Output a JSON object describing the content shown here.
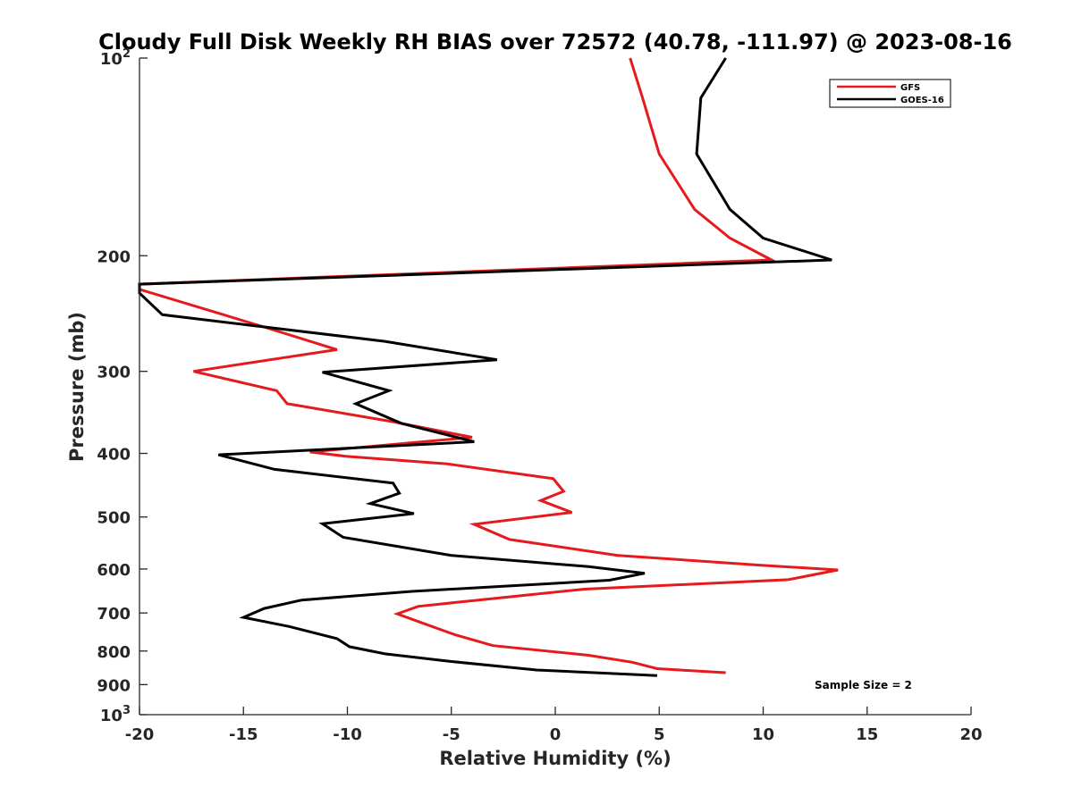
{
  "chart_data": {
    "type": "line",
    "title": "Cloudy Full Disk Weekly RH BIAS over 72572 (40.78, -111.97) @ 2023-08-16",
    "xlabel": "Relative Humidity (%)",
    "ylabel": "Pressure (mb)",
    "xlim": [
      -20,
      20
    ],
    "ylim": [
      100,
      1000
    ],
    "yscale": "log",
    "y_reversed": true,
    "x_ticks": [
      -20,
      -15,
      -10,
      -5,
      0,
      5,
      10,
      15,
      20
    ],
    "x_tick_labels": [
      "-20",
      "-15",
      "-10",
      "-5",
      "0",
      "5",
      "10",
      "15",
      "20"
    ],
    "y_ticks": [
      100,
      200,
      300,
      400,
      500,
      600,
      700,
      800,
      900,
      1000
    ],
    "y_tick_labels": [
      {
        "base": "10",
        "exp": "2"
      },
      {
        "base": "200",
        "exp": ""
      },
      {
        "base": "300",
        "exp": ""
      },
      {
        "base": "400",
        "exp": ""
      },
      {
        "base": "500",
        "exp": ""
      },
      {
        "base": "600",
        "exp": ""
      },
      {
        "base": "700",
        "exp": ""
      },
      {
        "base": "800",
        "exp": ""
      },
      {
        "base": "900",
        "exp": ""
      },
      {
        "base": "10",
        "exp": "3"
      }
    ],
    "legend_position": "top-right",
    "series": [
      {
        "name": "GFS",
        "color": "#e41a1c",
        "x": [
          3.6,
          4.2,
          5.0,
          6.7,
          8.4,
          10.4,
          -20.0,
          -20.0,
          -13.8,
          -10.5,
          -17.4,
          -13.4,
          -12.9,
          -7.8,
          -4.0,
          -11.8,
          -10.1,
          -5.2,
          -0.1,
          0.4,
          -0.7,
          0.8,
          -3.9,
          -2.2,
          3.0,
          9.9,
          13.6,
          11.2,
          1.4,
          -3.7,
          -6.6,
          -7.6,
          -6.3,
          -4.8,
          -3.0,
          1.6,
          3.7,
          4.9,
          8.2
        ],
        "y": [
          100,
          115,
          140,
          170,
          188,
          203,
          221,
          225,
          258,
          278,
          300,
          321,
          336,
          358,
          378,
          398,
          404,
          415,
          437,
          457,
          472,
          492,
          513,
          541,
          572,
          592,
          602,
          623,
          644,
          669,
          684,
          702,
          727,
          756,
          785,
          812,
          832,
          851,
          863
        ],
        "values": [
          3.6,
          4.2,
          5.0,
          6.7,
          8.4,
          10.4,
          -20.0,
          -20.0,
          -13.8,
          -10.5,
          -17.4,
          -13.4,
          -12.9,
          -7.8,
          -4.0,
          -11.8,
          -10.1,
          -5.2,
          -0.1,
          0.4,
          -0.7,
          0.8,
          -3.9,
          -2.2,
          3.0,
          9.9,
          13.6,
          11.2,
          1.4,
          -3.7,
          -6.6,
          -7.6,
          -6.3,
          -4.8,
          -3.0,
          1.6,
          3.7,
          4.9,
          8.2
        ]
      },
      {
        "name": "GOES-16",
        "color": "#000000",
        "x": [
          8.2,
          7.0,
          6.8,
          8.4,
          10.0,
          13.3,
          -20.0,
          -20.0,
          -18.9,
          -8.2,
          -2.8,
          -11.2,
          -8.0,
          -9.6,
          -7.4,
          -3.9,
          -16.2,
          -13.5,
          -7.8,
          -7.5,
          -8.9,
          -6.8,
          -11.2,
          -10.2,
          -5.0,
          1.6,
          4.3,
          2.6,
          -6.9,
          -12.2,
          -14.0,
          -15.0,
          -12.8,
          -10.5,
          -9.9,
          -8.2,
          -5.0,
          -0.9,
          4.9
        ],
        "y": [
          100,
          115,
          140,
          170,
          188,
          203,
          221,
          228,
          246,
          270,
          288,
          301,
          321,
          336,
          360,
          384,
          402,
          423,
          444,
          460,
          477,
          494,
          512,
          537,
          572,
          595,
          609,
          624,
          649,
          669,
          689,
          711,
          734,
          766,
          788,
          808,
          830,
          855,
          872
        ],
        "values": [
          8.2,
          7.0,
          6.8,
          8.4,
          10.0,
          13.3,
          -20.0,
          -20.0,
          -18.9,
          -8.2,
          -2.8,
          -11.2,
          -8.0,
          -9.6,
          -7.4,
          -3.9,
          -16.2,
          -13.5,
          -7.8,
          -7.5,
          -8.9,
          -6.8,
          -11.2,
          -10.2,
          -5.0,
          1.6,
          4.3,
          2.6,
          -6.9,
          -12.2,
          -14.0,
          -15.0,
          -12.8,
          -10.5,
          -9.9,
          -8.2,
          -5.0,
          -0.9,
          4.9
        ]
      }
    ],
    "annotations": [
      {
        "text": "Sample Size = 2",
        "position": "bottom-right"
      }
    ]
  }
}
